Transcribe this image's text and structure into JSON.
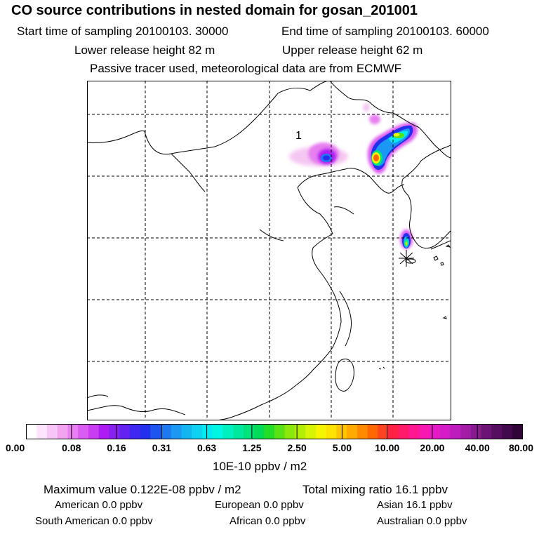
{
  "header": {
    "title": "CO  source contributions in nested domain for gosan_201001",
    "start_time": "Start time of sampling 20100103. 30000",
    "end_time": "End time of sampling 20100103. 60000",
    "lower_release": "Lower release height   82 m",
    "upper_release": "Upper release height   62 m",
    "tracer_note": "Passive tracer used, meteorological data are from ECMWF"
  },
  "map": {
    "marker_label": "1",
    "receptor_icon": "asterisk-icon"
  },
  "colorbar": {
    "unit_label": "10E-10 ppbv / m2",
    "tick_labels": [
      "0.00",
      "0.08",
      "0.16",
      "0.31",
      "0.63",
      "1.25",
      "2.50",
      "5.00",
      "10.00",
      "20.00",
      "40.00",
      "80.00"
    ],
    "colors": [
      "#ffffff",
      "#fde6fc",
      "#f8c6f6",
      "#f2a4f0",
      "#e77ff0",
      "#da5cf0",
      "#c93cf0",
      "#ad1cf2",
      "#8a1ff2",
      "#6422f2",
      "#3f27f2",
      "#2230ee",
      "#1d55f0",
      "#1d78f2",
      "#1a98f3",
      "#14b6f2",
      "#0fd2f2",
      "#00eaf2",
      "#00f6e2",
      "#00f0bf",
      "#00e89e",
      "#00e27a",
      "#00dc55",
      "#24dd28",
      "#5ae214",
      "#8ce80c",
      "#b4ee08",
      "#d8f404",
      "#f6f400",
      "#ffe200",
      "#ffc600",
      "#ffaa00",
      "#ff8a00",
      "#ff6800",
      "#ff4420",
      "#ff2244",
      "#ff1a6a",
      "#ff1890",
      "#f818b0",
      "#e818c4",
      "#d41cc8",
      "#bf1cbe",
      "#a31ca8",
      "#861a8e",
      "#6c1476",
      "#560e60",
      "#420a4c",
      "#300638"
    ]
  },
  "footer": {
    "max_value": "Maximum value  0.122E-08 ppbv / m2",
    "total_mixing": "Total mixing ratio       16.1 ppbv",
    "american": "American         0.0 ppbv",
    "european": "European       0.0 ppbv",
    "asian": "Asian      16.1 ppbv",
    "south_american": "South American         0.0 ppbv",
    "african": "African       0.0 ppbv",
    "australian": "Australian         0.0 ppbv"
  }
}
